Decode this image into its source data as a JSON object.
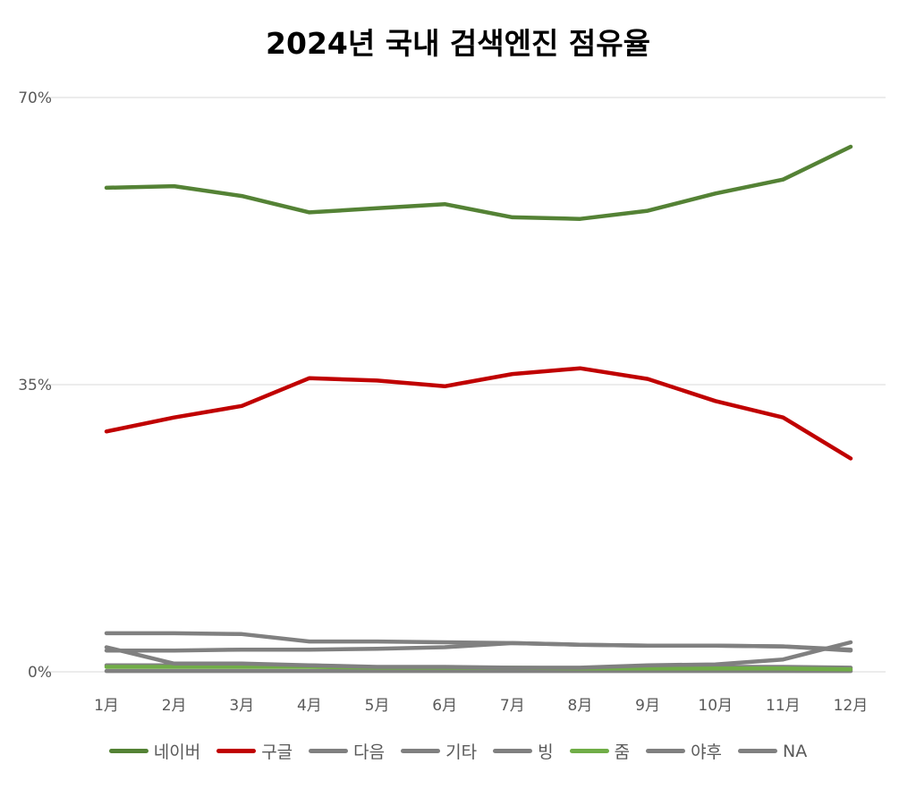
{
  "chart_data": {
    "type": "line",
    "title": "2024년 국내 검색엔진 점유율",
    "categories": [
      "1月",
      "2月",
      "3月",
      "4月",
      "5月",
      "6月",
      "7月",
      "8月",
      "9月",
      "10月",
      "11月",
      "12月"
    ],
    "ylim": [
      0,
      70
    ],
    "yticks": [
      "0%",
      "35%",
      "70%"
    ],
    "grid": true,
    "legend_position": "bottom",
    "series": [
      {
        "name": "네이버",
        "color": "#548235",
        "values": [
          59.0,
          59.2,
          58.0,
          56.0,
          56.5,
          57.0,
          55.4,
          55.2,
          56.2,
          58.3,
          60.0,
          64.0
        ]
      },
      {
        "name": "구글",
        "color": "#c00000",
        "values": [
          29.3,
          31.0,
          32.4,
          35.8,
          35.5,
          34.8,
          36.3,
          37.0,
          35.7,
          33.0,
          31.0,
          26.0
        ]
      },
      {
        "name": "다음",
        "color": "#808080",
        "values": [
          4.7,
          4.7,
          4.6,
          3.7,
          3.7,
          3.6,
          3.5,
          3.3,
          3.2,
          3.2,
          3.1,
          2.7
        ]
      },
      {
        "name": "기타",
        "color": "#808080",
        "values": [
          2.6,
          2.6,
          2.7,
          2.7,
          2.8,
          3.0,
          3.5,
          3.3,
          3.2,
          3.2,
          3.1,
          2.6
        ]
      },
      {
        "name": "빙",
        "color": "#808080",
        "values": [
          3.0,
          1.0,
          1.0,
          0.8,
          0.6,
          0.6,
          0.5,
          0.5,
          0.8,
          0.9,
          1.5,
          3.6
        ]
      },
      {
        "name": "줌",
        "color": "#70ad47",
        "values": [
          0.6,
          0.6,
          0.6,
          0.6,
          0.5,
          0.5,
          0.5,
          0.4,
          0.4,
          0.4,
          0.4,
          0.3
        ]
      },
      {
        "name": "야후",
        "color": "#808080",
        "values": [
          0.8,
          0.8,
          0.8,
          0.8,
          0.5,
          0.5,
          0.4,
          0.4,
          0.5,
          0.6,
          0.6,
          0.5
        ]
      },
      {
        "name": "NA",
        "color": "#808080",
        "values": [
          0.1,
          0.1,
          0.1,
          0.1,
          0.1,
          0.1,
          0.1,
          0.1,
          0.1,
          0.1,
          0.1,
          0.1
        ]
      }
    ]
  }
}
